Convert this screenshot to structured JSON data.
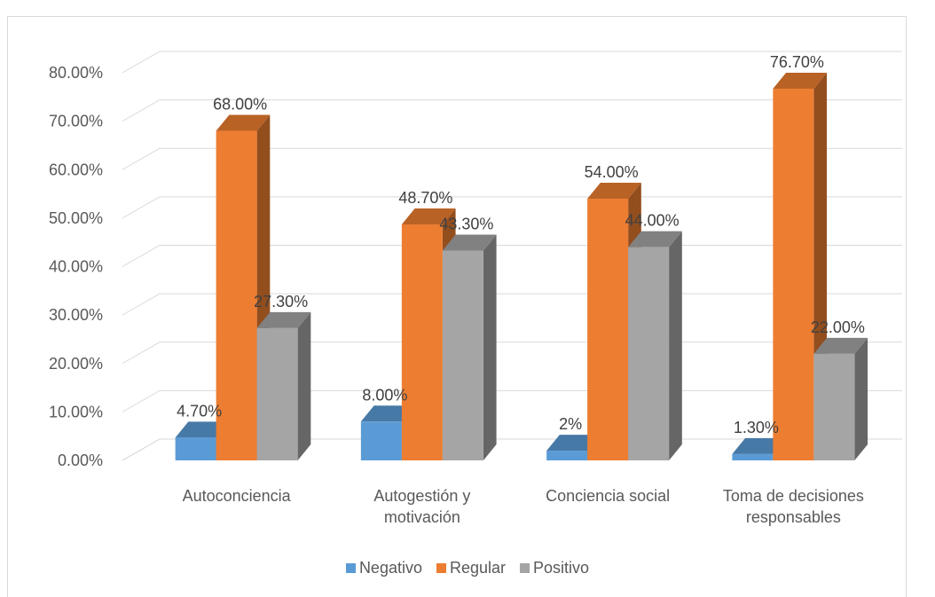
{
  "chart_data": {
    "type": "bar",
    "style": "3d-clustered-column",
    "categories": [
      [
        "Autoconciencia"
      ],
      [
        "Autogestión y",
        "motivación"
      ],
      [
        "Conciencia social"
      ],
      [
        "Toma de decisiones",
        "responsables"
      ]
    ],
    "series": [
      {
        "name": "Negativo",
        "color": "#5b9bd5",
        "values": [
          4.7,
          8.0,
          2.0,
          1.3
        ],
        "labels": [
          "4.70%",
          "8.00%",
          "2%",
          "1.30%"
        ]
      },
      {
        "name": "Regular",
        "color": "#ed7d31",
        "values": [
          68.0,
          48.7,
          54.0,
          76.7
        ],
        "labels": [
          "68.00%",
          "48.70%",
          "54.00%",
          "76.70%"
        ]
      },
      {
        "name": "Positivo",
        "color": "#a5a5a5",
        "values": [
          27.3,
          43.3,
          44.0,
          22.0
        ],
        "labels": [
          "27.30%",
          "43.30%",
          "44.00%",
          "22.00%"
        ]
      }
    ],
    "yticks": [
      "0.00%",
      "10.00%",
      "20.00%",
      "30.00%",
      "40.00%",
      "50.00%",
      "60.00%",
      "70.00%",
      "80.00%"
    ],
    "ylim": [
      0,
      80
    ],
    "grid": true,
    "legend_position": "bottom"
  }
}
